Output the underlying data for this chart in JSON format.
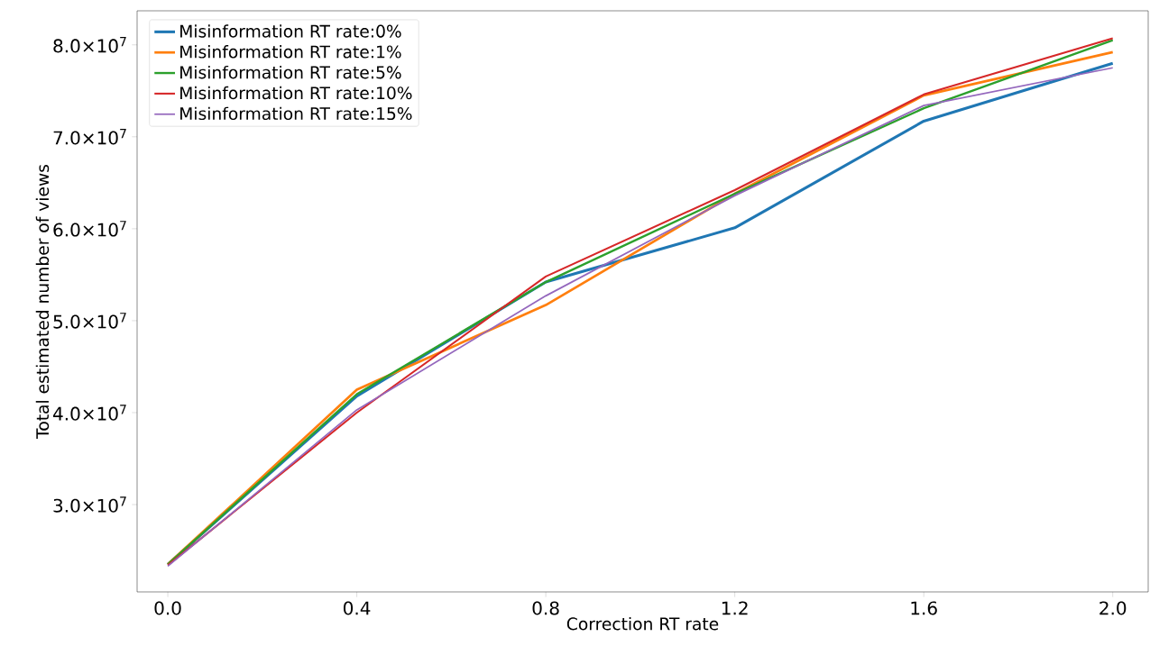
{
  "chart_data": {
    "type": "line",
    "xlabel": "Correction RT rate",
    "ylabel": "Total estimated number of views",
    "x": [
      0.0,
      0.4,
      0.8,
      1.2,
      1.6,
      2.0
    ],
    "series": [
      {
        "name": "Misinformation RT rate:0%",
        "color": "#1f77b4",
        "values": [
          23500000,
          41800000,
          54200000,
          60100000,
          71700000,
          78000000
        ]
      },
      {
        "name": "Misinformation RT rate:1%",
        "color": "#ff7f0e",
        "values": [
          23500000,
          42500000,
          51700000,
          63800000,
          74500000,
          79200000
        ]
      },
      {
        "name": "Misinformation RT rate:5%",
        "color": "#2ca02c",
        "values": [
          23500000,
          42000000,
          54200000,
          63800000,
          73100000,
          80500000
        ]
      },
      {
        "name": "Misinformation RT rate:10%",
        "color": "#d62728",
        "values": [
          23400000,
          40000000,
          54800000,
          64200000,
          74600000,
          80700000
        ]
      },
      {
        "name": "Misinformation RT rate:15%",
        "color": "#9467bd",
        "values": [
          23300000,
          40300000,
          52700000,
          63600000,
          73400000,
          77500000
        ]
      }
    ],
    "xlim": [
      -0.065,
      2.075
    ],
    "ylim": [
      20500000,
      83700000
    ],
    "xticks": [
      {
        "value": 0.0,
        "label": "0.0"
      },
      {
        "value": 0.4,
        "label": "0.4"
      },
      {
        "value": 0.8,
        "label": "0.8"
      },
      {
        "value": 1.2,
        "label": "1.2"
      },
      {
        "value": 1.6,
        "label": "1.6"
      },
      {
        "value": 2.0,
        "label": "2.0"
      }
    ],
    "yticks": [
      {
        "value": 30000000,
        "label": "3.0×10$^{7}$"
      },
      {
        "value": 40000000,
        "label": "4.0×10$^{7}$"
      },
      {
        "value": 50000000,
        "label": "5.0×10$^{7}$"
      },
      {
        "value": 60000000,
        "label": "6.0×10$^{7}$"
      },
      {
        "value": 70000000,
        "label": "7.0×10$^{7}$"
      },
      {
        "value": 80000000,
        "label": "8.0×10$^{7}$"
      }
    ],
    "grid": false,
    "legend": "top left",
    "line_style": "solid",
    "marker": "none"
  }
}
